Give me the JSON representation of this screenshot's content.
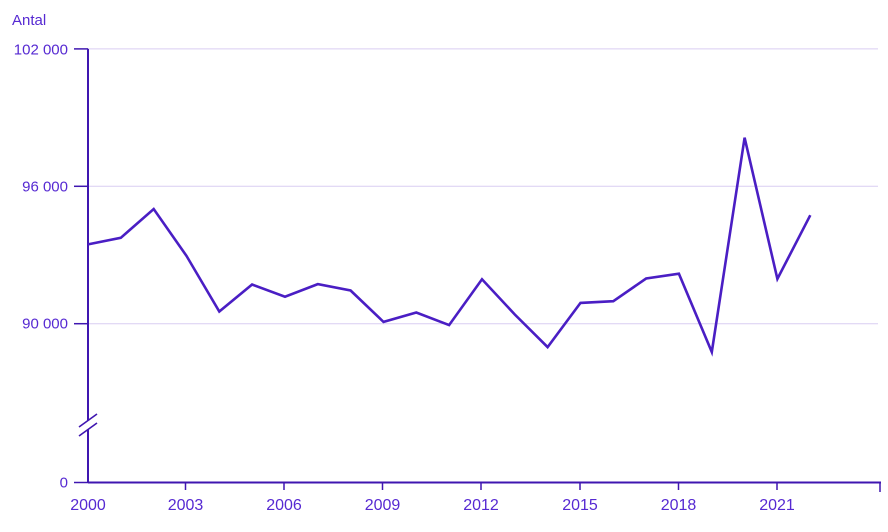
{
  "chart_data": {
    "type": "line",
    "title": "",
    "ylabel": "Antal",
    "xlabel": "",
    "x": [
      2000,
      2001,
      2002,
      2003,
      2004,
      2005,
      2006,
      2007,
      2008,
      2009,
      2010,
      2011,
      2012,
      2013,
      2014,
      2015,
      2016,
      2017,
      2018,
      2019,
      2020,
      2021,
      2022
    ],
    "series": [
      {
        "name": "Antal",
        "values": [
          93461,
          93752,
          95009,
          92961,
          90532,
          91710,
          91177,
          91729,
          91449,
          90080,
          90487,
          89938,
          91938,
          90402,
          88976,
          90907,
          90982,
          91972,
          92185,
          88766,
          98124,
          91958,
          94737
        ]
      }
    ],
    "y_ticks": [
      102000,
      96000,
      90000,
      0
    ],
    "y_tick_labels": [
      "102 000",
      "96 000",
      "90 000",
      "0"
    ],
    "x_ticks": [
      2000,
      2003,
      2006,
      2009,
      2012,
      2015,
      2018,
      2021
    ],
    "x_tick_labels": [
      "2000",
      "2003",
      "2006",
      "2009",
      "2012",
      "2015",
      "2018",
      "2021"
    ],
    "axis_break": true,
    "grid": "horizontal-only",
    "legend": "none",
    "ylim_display": [
      88500,
      102000
    ],
    "colors": {
      "line": "#4a1ec4",
      "axis": "#3f16b0",
      "text": "#5629d2",
      "gridline": "#d9cef2",
      "background": "#ffffff"
    }
  }
}
